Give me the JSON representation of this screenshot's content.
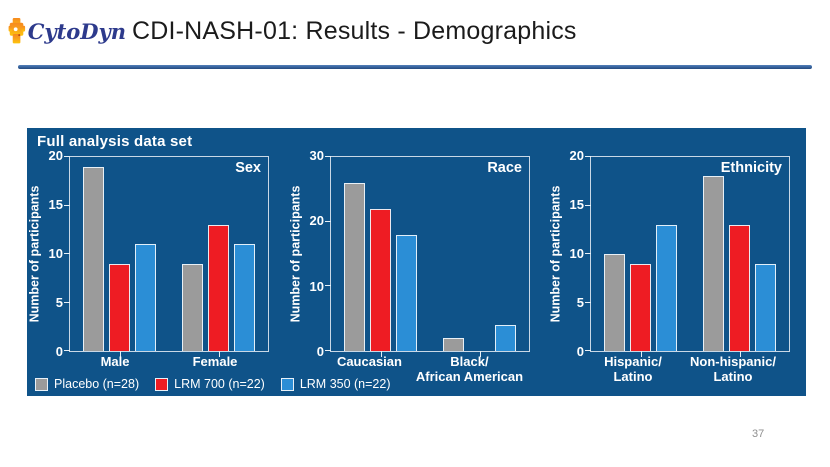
{
  "header": {
    "logo_text": "CytoDyn",
    "title": "CDI-NASH-01: Results - Demographics"
  },
  "panel": {
    "title": "Full analysis data set",
    "background": "#0f5389",
    "legend": [
      {
        "label": "Placebo (n=28)",
        "color": "#9b9b9b"
      },
      {
        "label": "LRM 700 (n=22)",
        "color": "#ee1c23"
      },
      {
        "label": "LRM 350 (n=22)",
        "color": "#2b8ed6"
      }
    ]
  },
  "page_number": "37",
  "chart_data": [
    {
      "type": "bar",
      "title": "Sex",
      "ylabel": "Number of participants",
      "ylim": [
        0,
        20
      ],
      "yticks": [
        0,
        5,
        10,
        15,
        20
      ],
      "grid": false,
      "legend_position": "bottom-left",
      "categories": [
        "Male",
        "Female"
      ],
      "series": [
        {
          "name": "Placebo (n=28)",
          "values": [
            19,
            9
          ]
        },
        {
          "name": "LRM 700 (n=22)",
          "values": [
            9,
            13
          ]
        },
        {
          "name": "LRM 350 (n=22)",
          "values": [
            11,
            11
          ]
        }
      ]
    },
    {
      "type": "bar",
      "title": "Race",
      "ylabel": "Number of participants",
      "ylim": [
        0,
        30
      ],
      "yticks": [
        0,
        10,
        20,
        30
      ],
      "grid": false,
      "legend_position": "bottom-left",
      "categories": [
        "Caucasian",
        "Black/\nAfrican American"
      ],
      "series": [
        {
          "name": "Placebo (n=28)",
          "values": [
            26,
            2
          ]
        },
        {
          "name": "LRM 700 (n=22)",
          "values": [
            22,
            0
          ]
        },
        {
          "name": "LRM 350 (n=22)",
          "values": [
            18,
            4
          ]
        }
      ]
    },
    {
      "type": "bar",
      "title": "Ethnicity",
      "ylabel": "Number of participants",
      "ylim": [
        0,
        20
      ],
      "yticks": [
        0,
        5,
        10,
        15,
        20
      ],
      "grid": false,
      "legend_position": "bottom-left",
      "categories": [
        "Hispanic/\nLatino",
        "Non-hispanic/\nLatino"
      ],
      "series": [
        {
          "name": "Placebo (n=28)",
          "values": [
            10,
            18
          ]
        },
        {
          "name": "LRM 700 (n=22)",
          "values": [
            9,
            13
          ]
        },
        {
          "name": "LRM 350 (n=22)",
          "values": [
            13,
            9
          ]
        }
      ]
    }
  ]
}
